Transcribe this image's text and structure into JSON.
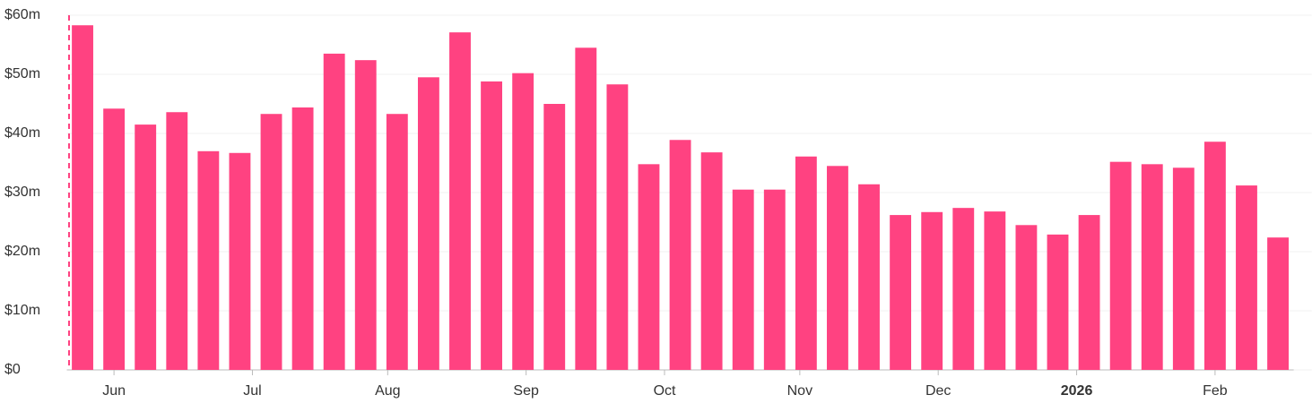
{
  "chart_data": {
    "type": "bar",
    "color": "#ff4281",
    "categories": [
      null,
      null,
      null,
      null,
      null,
      null,
      null,
      null,
      null,
      null,
      null,
      null,
      null,
      null,
      null,
      null,
      null,
      null,
      null,
      null,
      null,
      null,
      null,
      null,
      null,
      null,
      null,
      null,
      null,
      null,
      null,
      null,
      null,
      null,
      null,
      null,
      null,
      null,
      null
    ],
    "values": [
      58.3,
      44.2,
      41.5,
      43.6,
      37.0,
      36.7,
      43.3,
      44.4,
      53.5,
      52.4,
      43.3,
      49.5,
      57.1,
      48.8,
      50.2,
      45.0,
      54.5,
      48.3,
      34.8,
      38.9,
      36.8,
      30.5,
      30.5,
      36.1,
      34.5,
      31.4,
      26.2,
      26.7,
      27.4,
      26.8,
      24.5,
      22.9,
      26.2,
      35.2,
      34.8,
      34.2,
      38.6,
      31.2,
      22.4
    ],
    "xlim": [
      -0.5,
      38.5
    ],
    "xticks": [
      {
        "value": 1.0,
        "label": "Jun"
      },
      {
        "value": 5.4,
        "label": "Jul"
      },
      {
        "value": 9.7,
        "label": "Aug"
      },
      {
        "value": 14.1,
        "label": "Sep"
      },
      {
        "value": 18.5,
        "label": "Oct"
      },
      {
        "value": 22.8,
        "label": "Nov"
      },
      {
        "value": 27.2,
        "label": "Dec"
      },
      {
        "value": 31.6,
        "label": "2026",
        "bold": true
      },
      {
        "value": 36.0,
        "label": "Feb"
      }
    ],
    "ylim": [
      0,
      60
    ],
    "yticks": [
      {
        "value": 0,
        "label": "$0"
      },
      {
        "value": 10,
        "label": "$10m"
      },
      {
        "value": 20,
        "label": "$20m"
      },
      {
        "value": 30,
        "label": "$30m"
      },
      {
        "value": 40,
        "label": "$40m"
      },
      {
        "value": 50,
        "label": "$50m"
      },
      {
        "value": 60,
        "label": "$60m"
      }
    ],
    "grid": true
  }
}
